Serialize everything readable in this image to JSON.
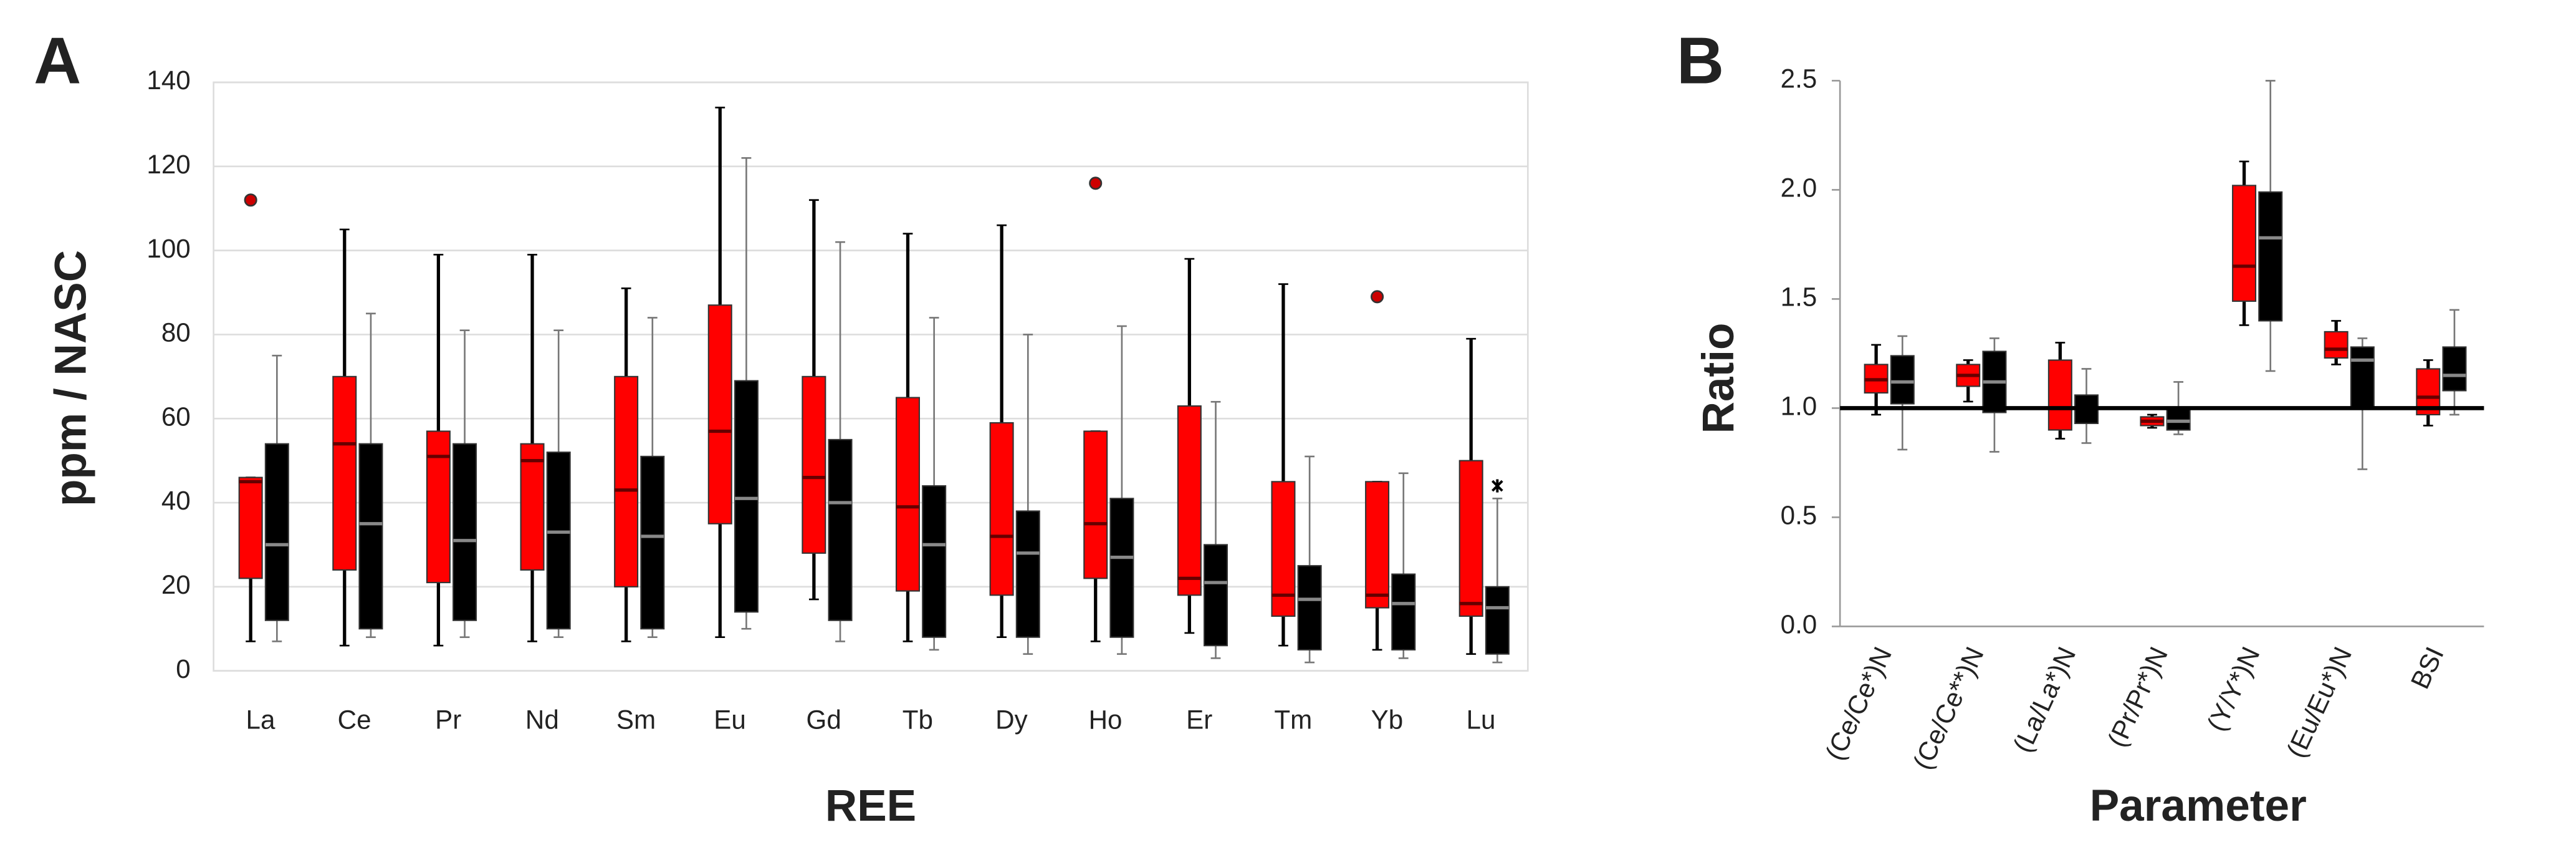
{
  "chart_data": [
    {
      "type": "box",
      "panel": "A",
      "x_label": "REE",
      "y_label": "ppm / NASC",
      "categories": [
        "La",
        "Ce",
        "Pr",
        "Nd",
        "Sm",
        "Eu",
        "Gd",
        "Tb",
        "Dy",
        "Ho",
        "Er",
        "Tm",
        "Yb",
        "Lu"
      ],
      "ylim": [
        0,
        140
      ],
      "yticks": [
        0,
        20,
        40,
        60,
        80,
        100,
        120,
        140
      ],
      "grid": true,
      "series": [
        {
          "color": "#ff0000",
          "low": [
            7,
            6,
            6,
            7,
            7,
            8,
            17,
            7,
            8,
            7,
            9,
            6,
            5,
            4
          ],
          "q1": [
            22,
            24,
            21,
            24,
            20,
            35,
            28,
            19,
            18,
            22,
            18,
            13,
            15,
            13
          ],
          "median": [
            45,
            54,
            51,
            50,
            43,
            57,
            46,
            39,
            32,
            35,
            22,
            18,
            18,
            16
          ],
          "q3": [
            46,
            70,
            57,
            54,
            70,
            87,
            70,
            65,
            59,
            57,
            63,
            45,
            45,
            50
          ],
          "high": [
            46,
            105,
            99,
            99,
            91,
            134,
            112,
            104,
            106,
            57,
            98,
            92,
            45,
            79
          ],
          "outliers": [
            112,
            null,
            null,
            null,
            null,
            null,
            null,
            null,
            null,
            116,
            null,
            null,
            89,
            null
          ]
        },
        {
          "color": "#000000",
          "low": [
            7,
            8,
            8,
            8,
            8,
            10,
            7,
            5,
            4,
            4,
            3,
            2,
            3,
            2
          ],
          "q1": [
            12,
            10,
            12,
            10,
            10,
            14,
            12,
            8,
            8,
            8,
            6,
            5,
            5,
            4
          ],
          "median": [
            30,
            35,
            31,
            33,
            32,
            41,
            40,
            30,
            28,
            27,
            21,
            17,
            16,
            15
          ],
          "q3": [
            54,
            54,
            54,
            52,
            51,
            69,
            55,
            44,
            38,
            41,
            30,
            25,
            23,
            20
          ],
          "high": [
            75,
            85,
            81,
            81,
            84,
            122,
            102,
            84,
            80,
            82,
            64,
            51,
            47,
            41
          ],
          "outliers": [
            null,
            null,
            null,
            null,
            null,
            null,
            null,
            null,
            null,
            null,
            null,
            null,
            null,
            44
          ]
        }
      ]
    },
    {
      "type": "box",
      "panel": "B",
      "x_label": "Parameter",
      "y_label": "Ratio",
      "categories": [
        "(Ce/Ce*)N",
        "(Ce/Ce**)N",
        "(La/La*)N",
        "(Pr/Pr*)N",
        "(Y/Y*)N",
        "(Eu/Eu*)N",
        "BSI"
      ],
      "ylim": [
        0,
        2.5
      ],
      "yticks": [
        {
          "value": 0,
          "label": "0.0"
        },
        {
          "value": 0.5,
          "label": "0.5"
        },
        {
          "value": 1,
          "label": "1.0"
        },
        {
          "value": 1.5,
          "label": "1.5"
        },
        {
          "value": 2,
          "label": "2.0"
        },
        {
          "value": 2.5,
          "label": "2.5"
        }
      ],
      "grid": false,
      "reference_line": 1,
      "series": [
        {
          "color": "#ff0000",
          "low": [
            0.97,
            1.03,
            0.86,
            0.91,
            1.38,
            1.2,
            0.92
          ],
          "q1": [
            1.07,
            1.1,
            0.9,
            0.92,
            1.49,
            1.23,
            0.97
          ],
          "median": [
            1.13,
            1.15,
            1.0,
            0.94,
            1.65,
            1.27,
            1.05
          ],
          "q3": [
            1.2,
            1.2,
            1.22,
            0.96,
            2.02,
            1.35,
            1.18
          ],
          "high": [
            1.29,
            1.22,
            1.3,
            0.97,
            2.13,
            1.4,
            1.22
          ],
          "outliers": [
            null,
            null,
            null,
            null,
            null,
            null,
            null
          ]
        },
        {
          "color": "#000000",
          "low": [
            0.81,
            0.8,
            0.84,
            0.88,
            1.17,
            0.72,
            0.97
          ],
          "q1": [
            1.02,
            0.98,
            0.93,
            0.9,
            1.4,
            1.0,
            1.08
          ],
          "median": [
            1.12,
            1.12,
            1.0,
            0.94,
            1.78,
            1.22,
            1.15
          ],
          "q3": [
            1.24,
            1.26,
            1.06,
            1.0,
            1.99,
            1.28,
            1.28
          ],
          "high": [
            1.33,
            1.32,
            1.18,
            1.12,
            2.5,
            1.32,
            1.45
          ],
          "outliers": [
            null,
            null,
            null,
            null,
            null,
            null,
            null
          ]
        }
      ]
    }
  ]
}
